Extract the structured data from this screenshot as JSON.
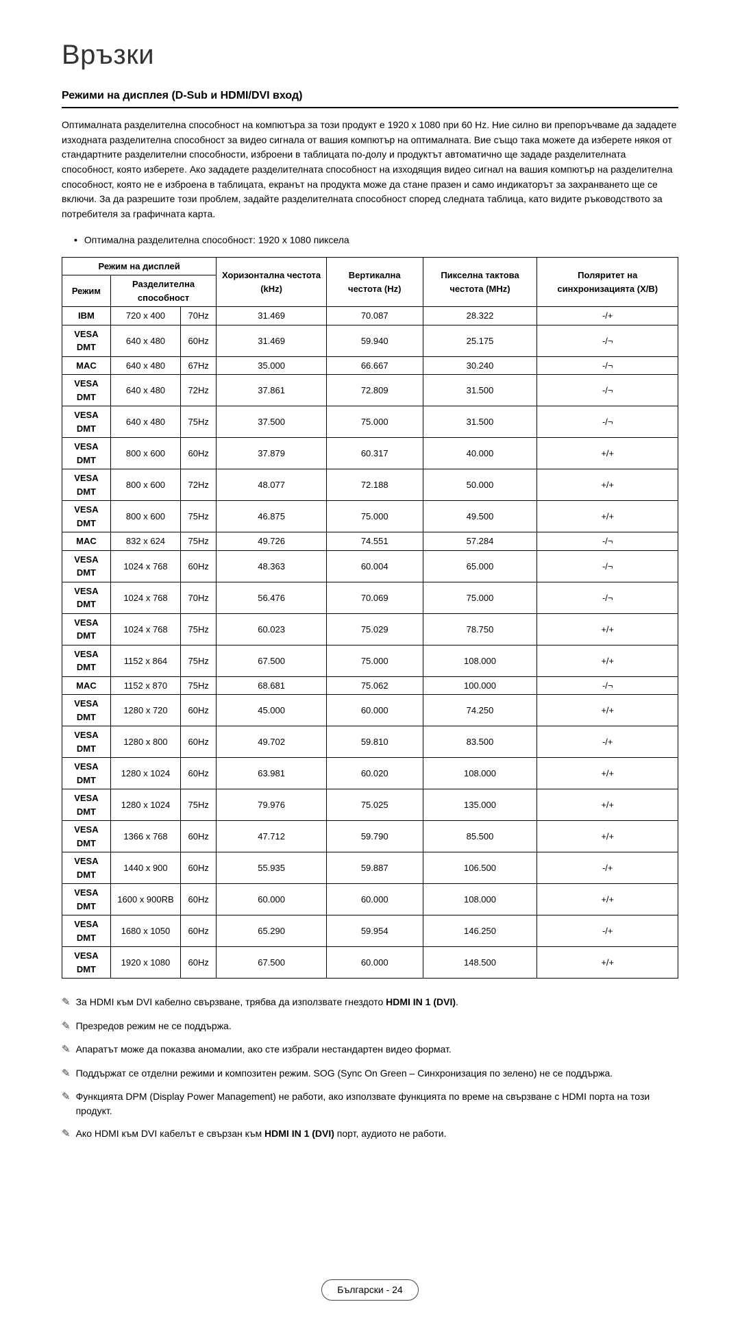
{
  "page_title": "Връзки",
  "section_heading": "Режими на дисплея (D-Sub и HDMI/DVI вход)",
  "paragraph": "Оптималната разделителна способност на компютъра за този продукт е 1920 x 1080 при 60 Hz. Ние силно ви препоръчваме да зададете изходната разделителна способност за видео сигнала от вашия компютър на оптималната. Вие също така можете да изберете някоя от стандартните разделителни способности, изброени в таблицата по-долу и продуктът автоматично ще зададе разделителната способност, която изберете. Ако зададете разделителната способност на изходящия видео сигнал на вашия компютър на разделителна способност, която не е изброена в таблицата, екранът на продукта може да стане празен и само индикаторът за захранването ще се включи. За да разрешите този проблем, задайте разделителната способност според следната таблица, като видите ръководството за потребителя за графичната карта.",
  "bullet_item": "Оптимална разделителна способност: 1920 x 1080 пиксела",
  "table": {
    "headers": {
      "display_mode": "Режим на дисплей",
      "mode": "Режим",
      "resolution": "Разделителна способност",
      "hfreq": "Хоризонтална честота (kHz)",
      "vfreq": "Вертикална честота (Hz)",
      "pixel_clock": "Пикселна тактова честота (MHz)",
      "polarity": "Поляритет на синхронизацията (X/B)"
    },
    "rows": [
      [
        "IBM",
        "720 x 400",
        "70Hz",
        "31.469",
        "70.087",
        "28.322",
        "-/+"
      ],
      [
        "VESA DMT",
        "640 x 480",
        "60Hz",
        "31.469",
        "59.940",
        "25.175",
        "-/¬"
      ],
      [
        "MAC",
        "640 x 480",
        "67Hz",
        "35.000",
        "66.667",
        "30.240",
        "-/¬"
      ],
      [
        "VESA DMT",
        "640 x 480",
        "72Hz",
        "37.861",
        "72.809",
        "31.500",
        "-/¬"
      ],
      [
        "VESA DMT",
        "640 x 480",
        "75Hz",
        "37.500",
        "75.000",
        "31.500",
        "-/¬"
      ],
      [
        "VESA DMT",
        "800 x 600",
        "60Hz",
        "37.879",
        "60.317",
        "40.000",
        "+/+"
      ],
      [
        "VESA DMT",
        "800 x 600",
        "72Hz",
        "48.077",
        "72.188",
        "50.000",
        "+/+"
      ],
      [
        "VESA DMT",
        "800 x 600",
        "75Hz",
        "46.875",
        "75.000",
        "49.500",
        "+/+"
      ],
      [
        "MAC",
        "832 x 624",
        "75Hz",
        "49.726",
        "74.551",
        "57.284",
        "-/¬"
      ],
      [
        "VESA DMT",
        "1024 x 768",
        "60Hz",
        "48.363",
        "60.004",
        "65.000",
        "-/¬"
      ],
      [
        "VESA DMT",
        "1024 x 768",
        "70Hz",
        "56.476",
        "70.069",
        "75.000",
        "-/¬"
      ],
      [
        "VESA DMT",
        "1024 x 768",
        "75Hz",
        "60.023",
        "75.029",
        "78.750",
        "+/+"
      ],
      [
        "VESA DMT",
        "1152 x 864",
        "75Hz",
        "67.500",
        "75.000",
        "108.000",
        "+/+"
      ],
      [
        "MAC",
        "1152 x 870",
        "75Hz",
        "68.681",
        "75.062",
        "100.000",
        "-/¬"
      ],
      [
        "VESA DMT",
        "1280 x 720",
        "60Hz",
        "45.000",
        "60.000",
        "74.250",
        "+/+"
      ],
      [
        "VESA DMT",
        "1280 x 800",
        "60Hz",
        "49.702",
        "59.810",
        "83.500",
        "-/+"
      ],
      [
        "VESA DMT",
        "1280 x 1024",
        "60Hz",
        "63.981",
        "60.020",
        "108.000",
        "+/+"
      ],
      [
        "VESA DMT",
        "1280 x 1024",
        "75Hz",
        "79.976",
        "75.025",
        "135.000",
        "+/+"
      ],
      [
        "VESA DMT",
        "1366 x 768",
        "60Hz",
        "47.712",
        "59.790",
        "85.500",
        "+/+"
      ],
      [
        "VESA DMT",
        "1440 x 900",
        "60Hz",
        "55.935",
        "59.887",
        "106.500",
        "-/+"
      ],
      [
        "VESA DMT",
        "1600 x 900RB",
        "60Hz",
        "60.000",
        "60.000",
        "108.000",
        "+/+"
      ],
      [
        "VESA DMT",
        "1680 x 1050",
        "60Hz",
        "65.290",
        "59.954",
        "146.250",
        "-/+"
      ],
      [
        "VESA DMT",
        "1920 x 1080",
        "60Hz",
        "67.500",
        "60.000",
        "148.500",
        "+/+"
      ]
    ]
  },
  "notes": [
    {
      "pre": "За HDMI към DVI кабелно свързване, трябва да използвате гнездото ",
      "bold": "HDMI IN 1 (DVI)",
      "post": "."
    },
    {
      "pre": "Презредов режим не се поддържа.",
      "bold": "",
      "post": ""
    },
    {
      "pre": "Апаратът може да показва аномалии, ако сте избрали нестандартен видео формат.",
      "bold": "",
      "post": ""
    },
    {
      "pre": "Поддържат се отделни режими и композитен режим. SOG (Sync On Green – Синхронизация по зелено) не се поддържа.",
      "bold": "",
      "post": ""
    },
    {
      "pre": "Функцията DPM (Display Power Management) не работи, ако използвате функцията по време на свързване с HDMI порта на този продукт.",
      "bold": "",
      "post": ""
    },
    {
      "pre": "Ако HDMI към DVI кабелът е свързан към ",
      "bold": "HDMI IN 1 (DVI)",
      "post": " порт, аудиото не работи."
    }
  ],
  "footer": "Български - 24",
  "colors": {
    "text": "#000000",
    "background": "#ffffff",
    "border": "#000000"
  }
}
